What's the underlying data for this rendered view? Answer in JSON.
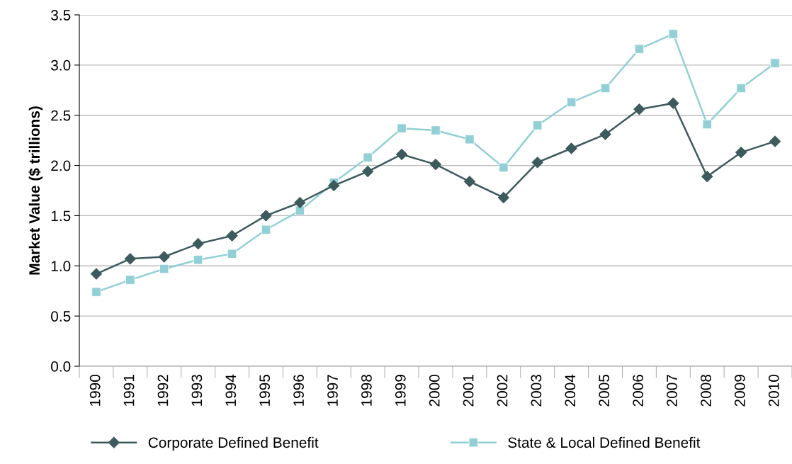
{
  "chart_data": {
    "type": "line",
    "ylabel": "Market Value ($ trillions)",
    "categories": [
      "1990",
      "1991",
      "1992",
      "1993",
      "1994",
      "1995",
      "1996",
      "1997",
      "1998",
      "1999",
      "2000",
      "2001",
      "2002",
      "2003",
      "2004",
      "2005",
      "2006",
      "2007",
      "2008",
      "2009",
      "2010"
    ],
    "series": [
      {
        "name": "Corporate Defined Benefit",
        "color": "#3d5a5c",
        "marker": "diamond",
        "values": [
          0.92,
          1.07,
          1.09,
          1.22,
          1.3,
          1.5,
          1.63,
          1.8,
          1.94,
          2.11,
          2.01,
          1.84,
          1.68,
          2.03,
          2.17,
          2.31,
          2.56,
          2.62,
          1.89,
          2.13,
          2.24
        ]
      },
      {
        "name": "State & Local Defined Benefit",
        "color": "#92d0d6",
        "marker": "square",
        "values": [
          0.74,
          0.86,
          0.97,
          1.06,
          1.12,
          1.36,
          1.55,
          1.83,
          2.08,
          2.37,
          2.35,
          2.26,
          1.98,
          2.4,
          2.63,
          2.77,
          3.16,
          3.31,
          2.41,
          2.77,
          3.02
        ]
      }
    ],
    "ylim": [
      0,
      3.5
    ],
    "yticks": [
      {
        "value": 0,
        "label": "0.0"
      },
      {
        "value": 0.5,
        "label": "0.5"
      },
      {
        "value": 1,
        "label": "1.0"
      },
      {
        "value": 1.5,
        "label": "1.5"
      },
      {
        "value": 2,
        "label": "2.0"
      },
      {
        "value": 2.5,
        "label": "2.5"
      },
      {
        "value": 3,
        "label": "3.0"
      },
      {
        "value": 3.5,
        "label": "3.5"
      }
    ],
    "grid": "y",
    "legend": "bottom",
    "line_style": "solid"
  }
}
